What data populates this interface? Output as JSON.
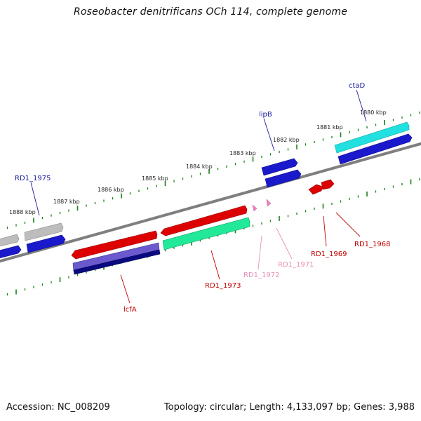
{
  "title": "Roseobacter denitrificans OCh 114, complete genome",
  "footer": {
    "accession": "Accession: NC_008209",
    "summary": "Topology: circular; Length: 4,133,097 bp; Genes: 3,988"
  },
  "scale_labels": [
    "1880 kbp",
    "1881 kbp",
    "1882 kbp",
    "1883 kbp",
    "1884 kbp",
    "1885 kbp",
    "1886 kbp",
    "1887 kbp",
    "1888 kbp"
  ],
  "gene_labels": {
    "ctaD": "ctaD",
    "lipB": "lipB",
    "rd1975": "RD1_1975",
    "lcfA": "lcfA",
    "rd1973": "RD1_1973",
    "rd1972": "RD1_1972",
    "rd1971": "RD1_1971",
    "rd1969": "RD1_1969",
    "rd1968": "RD1_1968"
  },
  "colors": {
    "backbone": "#7f7f7f",
    "tick_green": "#1a7f1a",
    "blue_gene": "#1a1acc",
    "red_gene": "#dd0000",
    "cyan_gene": "#22e0e0",
    "green_gene": "#22e89a",
    "gray_gene": "#bdbdbd",
    "purple_gene": "#6a5acd",
    "navy_gene": "#0a0a80",
    "pink_gene": "#f080c0",
    "label_blue": "#1a1a9c",
    "label_red": "#c00000",
    "label_pink": "#e890b8"
  }
}
